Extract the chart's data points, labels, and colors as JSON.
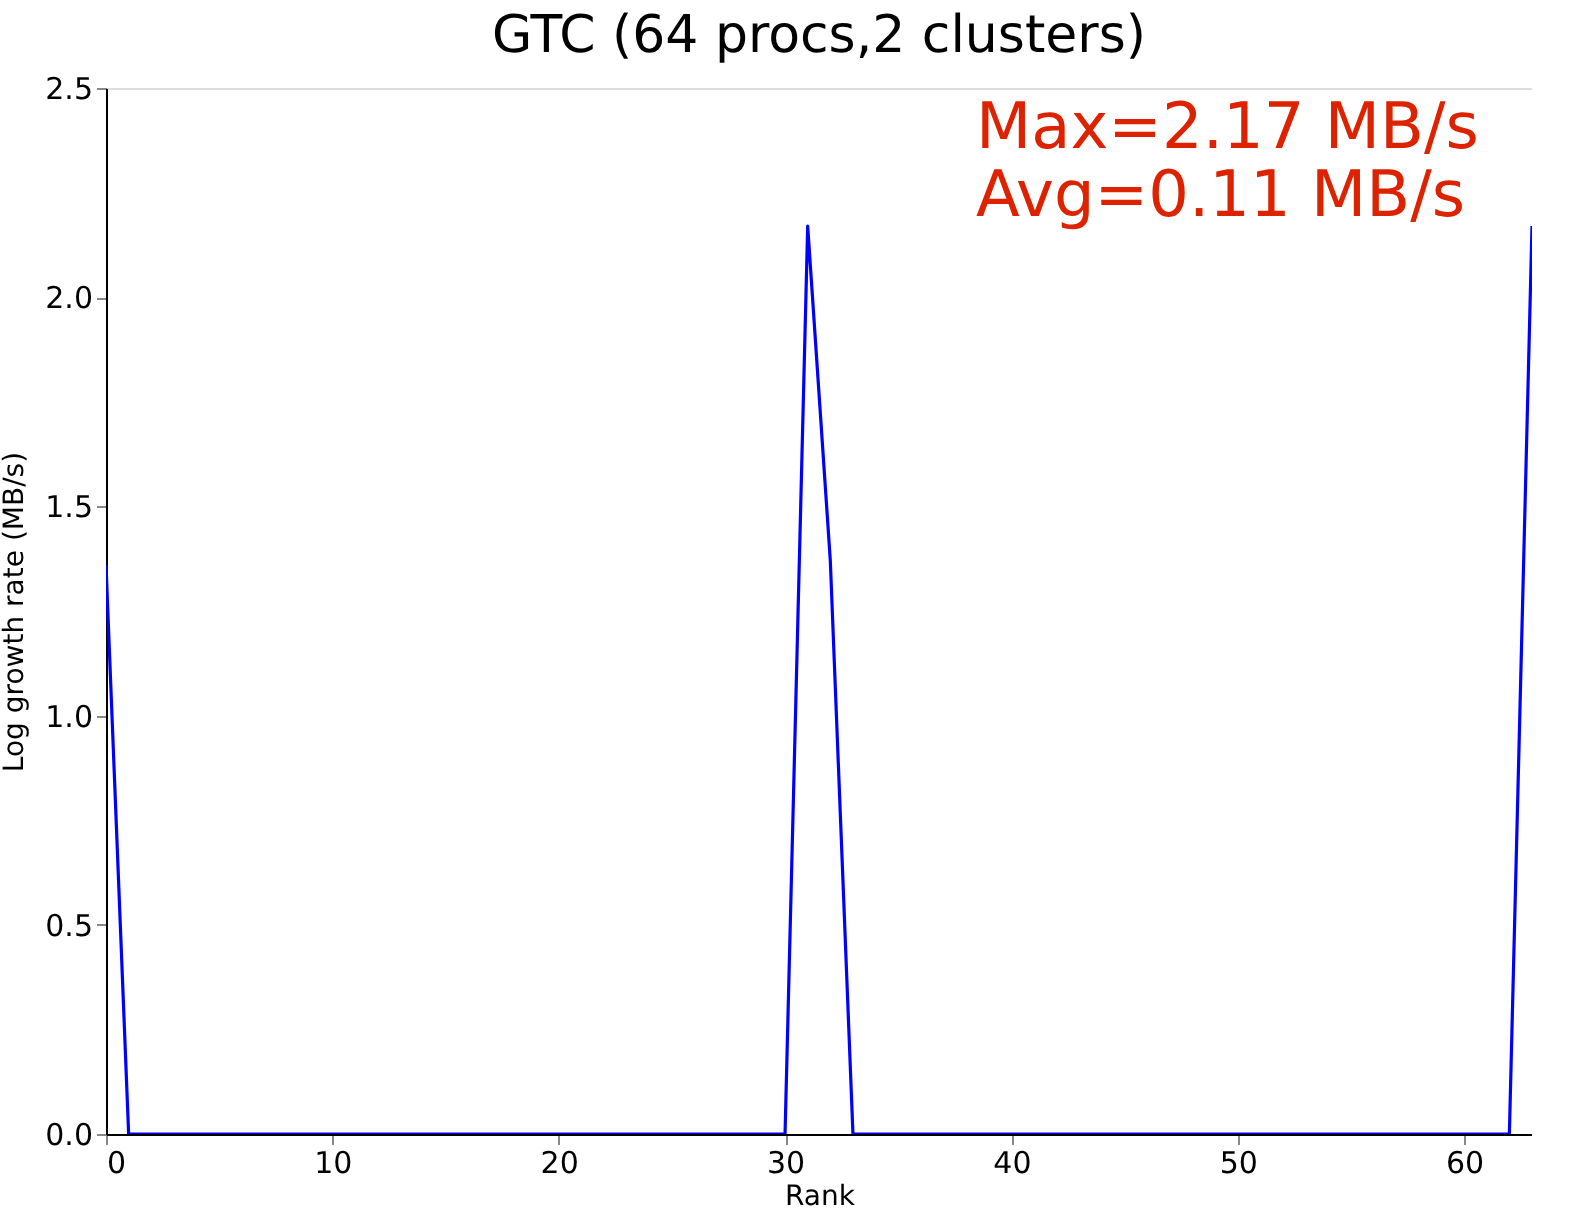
{
  "chart_data": {
    "type": "line",
    "title": "GTC (64 procs,2 clusters)",
    "xlabel": "Rank",
    "ylabel": "Log growth rate (MB/s)",
    "x": [
      0,
      1,
      2,
      3,
      4,
      5,
      6,
      7,
      8,
      9,
      10,
      11,
      12,
      13,
      14,
      15,
      16,
      17,
      18,
      19,
      20,
      21,
      22,
      23,
      24,
      25,
      26,
      27,
      28,
      29,
      30,
      31,
      32,
      33,
      34,
      35,
      36,
      37,
      38,
      39,
      40,
      41,
      42,
      43,
      44,
      45,
      46,
      47,
      48,
      49,
      50,
      51,
      52,
      53,
      54,
      55,
      56,
      57,
      58,
      59,
      60,
      61,
      62,
      63
    ],
    "series": [
      {
        "color": "#0000ff",
        "values": [
          1.36,
          0,
          0,
          0,
          0,
          0,
          0,
          0,
          0,
          0,
          0,
          0,
          0,
          0,
          0,
          0,
          0,
          0,
          0,
          0,
          0,
          0,
          0,
          0,
          0,
          0,
          0,
          0,
          0,
          0,
          0,
          2.17,
          1.37,
          0,
          0,
          0,
          0,
          0,
          0,
          0,
          0,
          0,
          0,
          0,
          0,
          0,
          0,
          0,
          0,
          0,
          0,
          0,
          0,
          0,
          0,
          0,
          0,
          0,
          0,
          0,
          0,
          0,
          0,
          2.17
        ]
      }
    ],
    "xlim": [
      0,
      63
    ],
    "xticks": [
      0,
      10,
      20,
      30,
      40,
      50,
      60
    ],
    "ylim": [
      0,
      2.5
    ],
    "yticks": [
      {
        "value": 0,
        "label": "0.0"
      },
      0.5,
      {
        "value": 1,
        "label": "1.0"
      },
      1.5,
      {
        "value": 2,
        "label": "2.0"
      },
      2.5
    ],
    "annotations": [
      "Max=2.17 MB/s",
      "Avg=0.11 MB/s"
    ],
    "grid": false,
    "legend": false,
    "marker": "none",
    "line_style": "solid"
  }
}
